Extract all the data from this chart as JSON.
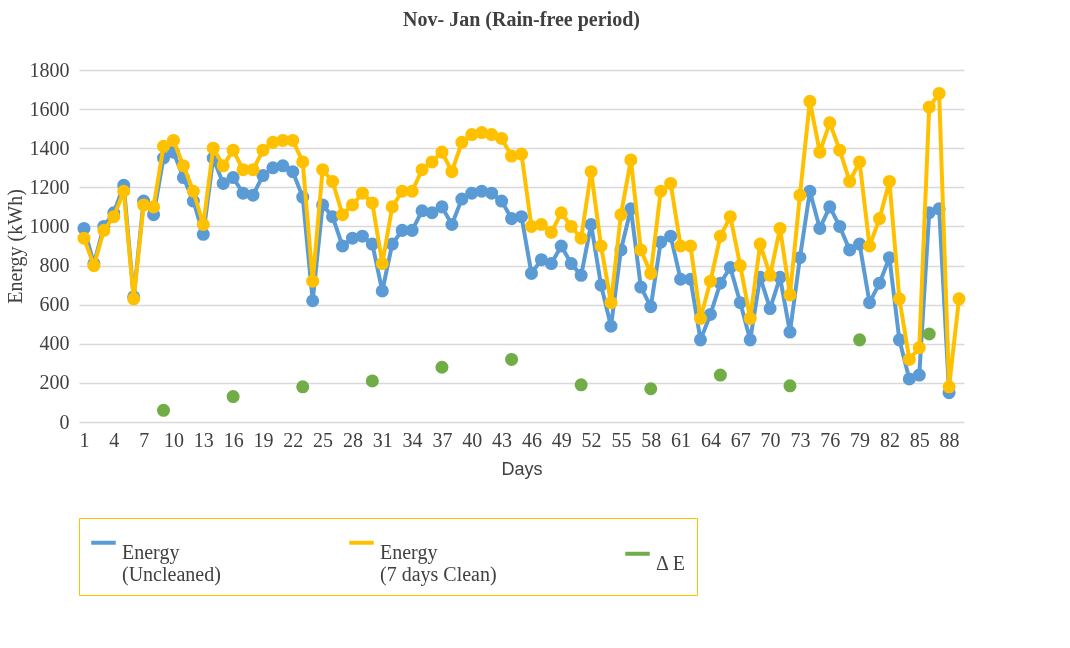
{
  "chart_data": {
    "type": "line",
    "title": "Nov- Jan (Rain-free period)",
    "xlabel": "Days",
    "ylabel": "Energy (kWh)",
    "categories": [
      "1",
      null,
      null,
      "4",
      null,
      null,
      "7",
      null,
      null,
      "10",
      null,
      null,
      "13",
      null,
      null,
      "16",
      null,
      null,
      "19",
      null,
      null,
      "22",
      null,
      null,
      "25",
      null,
      null,
      "28",
      null,
      null,
      "31",
      null,
      null,
      "34",
      null,
      null,
      "37",
      null,
      null,
      "40",
      null,
      null,
      "43",
      null,
      null,
      "46",
      null,
      null,
      "49",
      null,
      null,
      "52",
      null,
      null,
      "55",
      null,
      null,
      "58",
      null,
      null,
      "61",
      null,
      null,
      "64",
      null,
      null,
      "67",
      null,
      null,
      "70",
      null,
      null,
      "73",
      null,
      null,
      "76",
      null,
      null,
      "79",
      null,
      null,
      "82",
      null,
      null,
      "85",
      null,
      null,
      "88",
      null
    ],
    "ylim": [
      0,
      1800
    ],
    "yticks": [
      0,
      200,
      400,
      600,
      800,
      1000,
      1200,
      1400,
      1600,
      1800
    ],
    "grid": "y",
    "legend": "bottom",
    "marker": "circle",
    "series": [
      {
        "name": "Energy\n(Uncleaned)",
        "color": "#5b9bd5",
        "values": [
          990,
          810,
          1000,
          1070,
          1210,
          640,
          1130,
          1060,
          1350,
          1380,
          1250,
          1130,
          960,
          1350,
          1220,
          1250,
          1170,
          1160,
          1260,
          1300,
          1310,
          1280,
          1150,
          620,
          1110,
          1050,
          900,
          940,
          950,
          910,
          670,
          910,
          980,
          980,
          1080,
          1070,
          1100,
          1010,
          1140,
          1170,
          1180,
          1170,
          1130,
          1040,
          1050,
          760,
          830,
          810,
          900,
          810,
          750,
          1010,
          700,
          490,
          880,
          1090,
          690,
          590,
          920,
          950,
          730,
          730,
          420,
          550,
          710,
          790,
          610,
          420,
          740,
          580,
          740,
          460,
          840,
          1180,
          990,
          1100,
          1000,
          880,
          910,
          610,
          710,
          840,
          420,
          220,
          240,
          1070,
          1090,
          150,
          null
        ]
      },
      {
        "name": "Energy\n (7 days Clean)",
        "color": "#ffc000",
        "values": [
          940,
          800,
          980,
          1050,
          1180,
          630,
          1110,
          1100,
          1410,
          1440,
          1310,
          1180,
          1010,
          1400,
          1310,
          1390,
          1290,
          1290,
          1390,
          1430,
          1440,
          1440,
          1330,
          720,
          1290,
          1230,
          1060,
          1110,
          1170,
          1120,
          810,
          1100,
          1180,
          1180,
          1290,
          1330,
          1380,
          1280,
          1430,
          1470,
          1480,
          1470,
          1450,
          1360,
          1370,
          1000,
          1010,
          970,
          1070,
          1000,
          940,
          1280,
          900,
          610,
          1060,
          1340,
          880,
          760,
          1180,
          1220,
          900,
          900,
          530,
          720,
          950,
          1050,
          800,
          530,
          910,
          750,
          990,
          650,
          1160,
          1640,
          1380,
          1530,
          1390,
          1230,
          1330,
          900,
          1040,
          1230,
          630,
          320,
          380,
          1610,
          1680,
          180,
          630
        ]
      },
      {
        "name": "Δ E",
        "type": "scatter",
        "color": "#70ad47",
        "values": [
          null,
          null,
          null,
          null,
          null,
          null,
          null,
          null,
          60,
          null,
          null,
          null,
          null,
          null,
          null,
          130,
          null,
          null,
          null,
          null,
          null,
          null,
          180,
          null,
          null,
          null,
          null,
          null,
          null,
          210,
          null,
          null,
          null,
          null,
          null,
          null,
          280,
          null,
          null,
          null,
          null,
          null,
          null,
          320,
          null,
          null,
          null,
          null,
          null,
          null,
          190,
          null,
          null,
          null,
          null,
          null,
          null,
          170,
          null,
          null,
          null,
          null,
          null,
          null,
          240,
          null,
          null,
          null,
          null,
          null,
          null,
          185,
          null,
          null,
          null,
          null,
          null,
          null,
          420,
          null,
          null,
          null,
          null,
          null,
          null,
          450,
          null,
          null,
          null
        ]
      }
    ]
  }
}
